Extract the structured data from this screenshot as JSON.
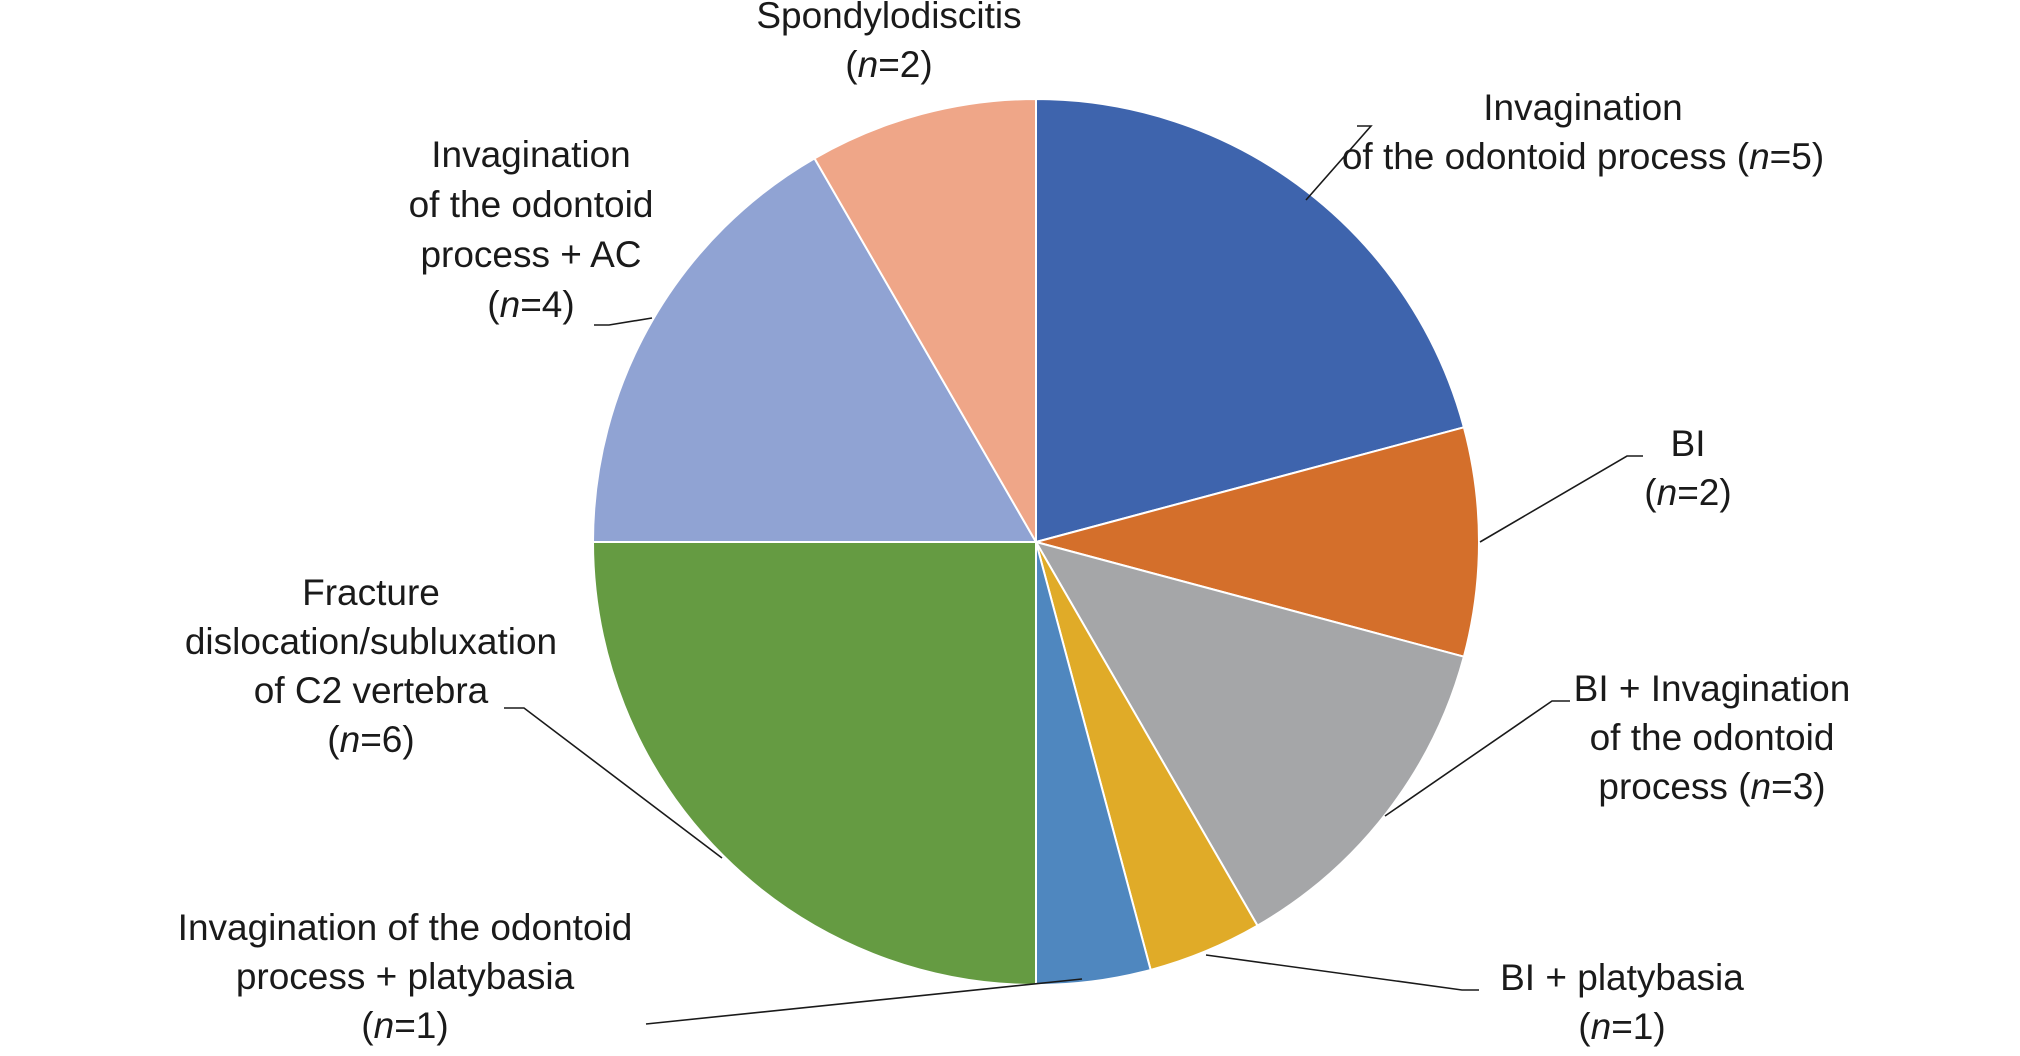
{
  "chart_data": {
    "type": "pie",
    "slices": [
      {
        "label_lines": [
          "Invagination",
          "of the odontoid process (|n|=5)"
        ],
        "value": 5,
        "color": "#3e64ad"
      },
      {
        "label_lines": [
          "BI",
          "(|n|=2)"
        ],
        "value": 2,
        "color": "#d46f2b"
      },
      {
        "label_lines": [
          "BI + Invagination",
          "of the odontoid",
          "process (|n|=3)"
        ],
        "value": 3,
        "color": "#a5a6a8"
      },
      {
        "label_lines": [
          "BI + platybasia",
          "(|n|=1)"
        ],
        "value": 1,
        "color": "#e0ab28"
      },
      {
        "label_lines": [
          "Invagination of the odontoid",
          "process + platybasia",
          "(|n|=1)"
        ],
        "value": 1,
        "color": "#4f87bf"
      },
      {
        "label_lines": [
          "Fracture",
          "dislocation/subluxation",
          "of C2 vertebra",
          "(|n|=6)"
        ],
        "value": 6,
        "color": "#659b42"
      },
      {
        "label_lines": [
          "Invagination",
          "of the odontoid",
          "process + AC",
          "(|n|=4)"
        ],
        "value": 4,
        "color": "#90a3d3"
      },
      {
        "label_lines": [
          "Spondylodiscitis",
          "(|n|=2)"
        ],
        "value": 2,
        "color": "#efa688"
      }
    ]
  }
}
